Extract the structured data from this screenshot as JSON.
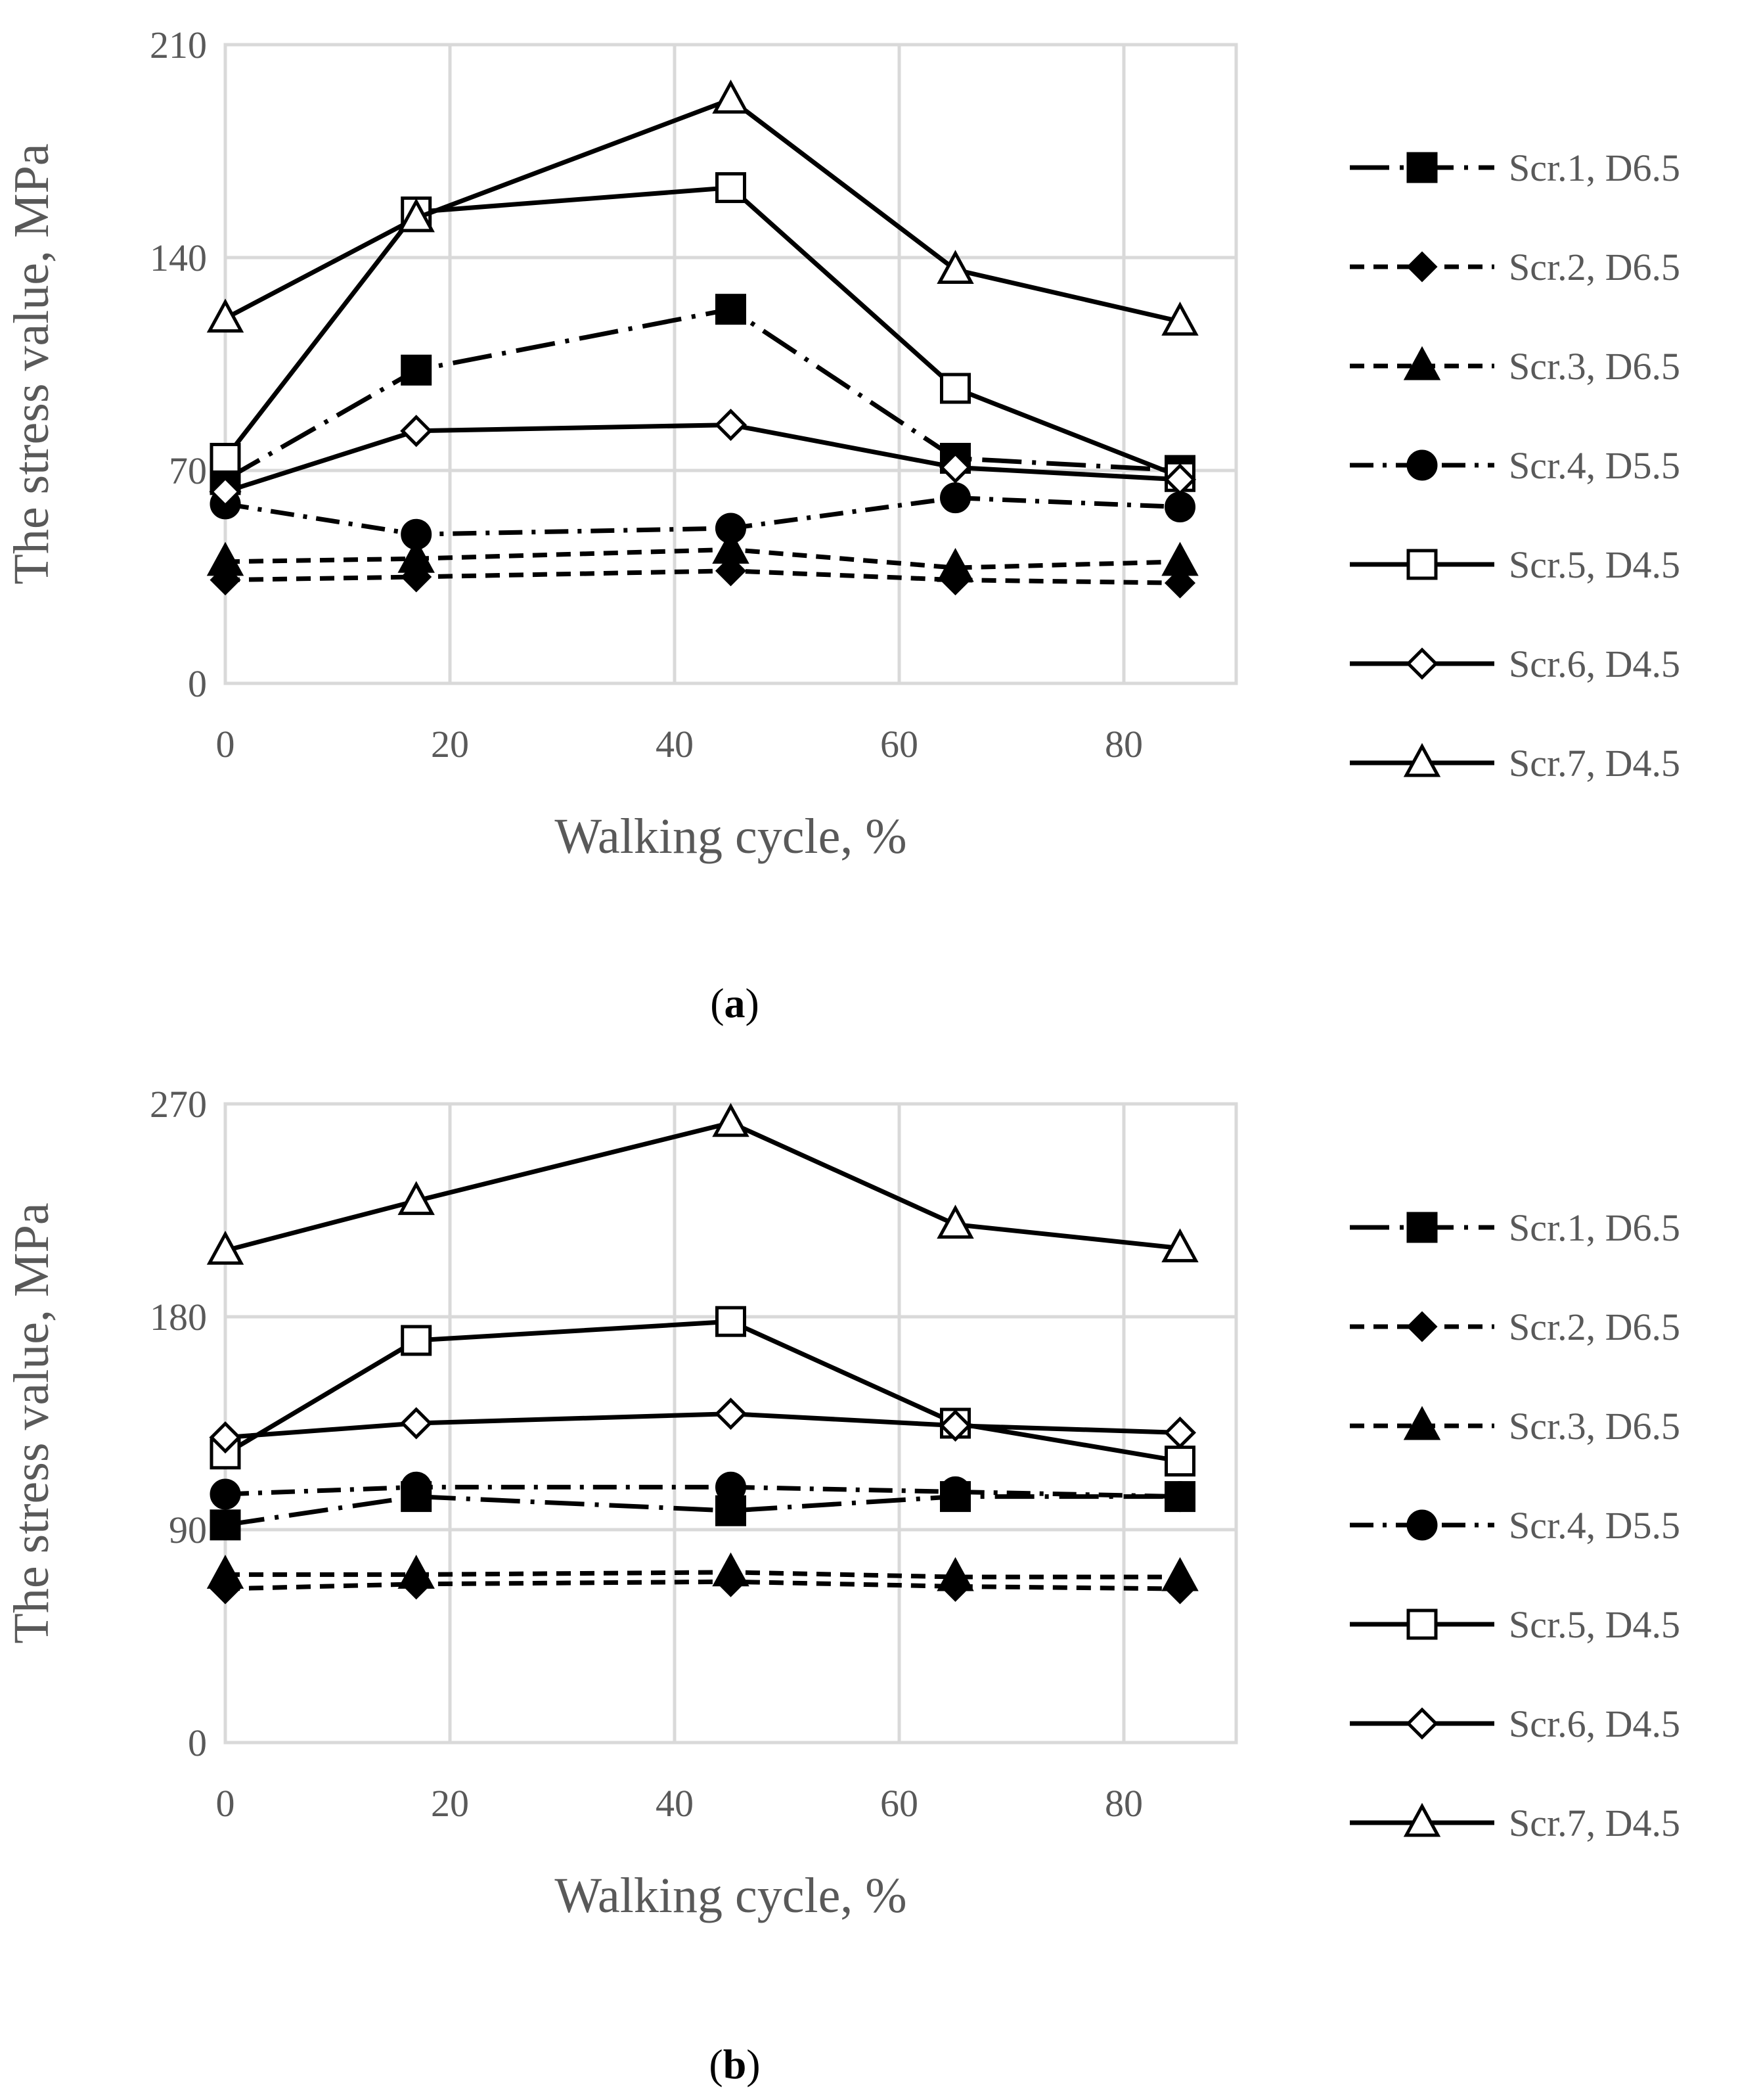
{
  "chart_data": [
    {
      "type": "line",
      "panel_label": "a",
      "caption": "(a)",
      "title": "",
      "xlabel": "Walking cycle, %",
      "ylabel": "The stress value, MPa",
      "xticks": [
        0,
        20,
        40,
        60,
        80
      ],
      "yticks": [
        0,
        70,
        140,
        210
      ],
      "xlim": [
        0,
        90
      ],
      "ylim": [
        0,
        210
      ],
      "x": [
        0,
        17,
        45,
        65,
        85
      ],
      "series": [
        {
          "name": "Scr.1, D6.5",
          "marker": "square-filled",
          "dash": "longdashdot",
          "values": [
            67,
            103,
            123,
            74,
            70
          ]
        },
        {
          "name": "Scr.2, D6.5",
          "marker": "diamond-filled",
          "dash": "dash",
          "values": [
            34,
            35,
            37,
            34,
            33
          ]
        },
        {
          "name": "Scr.3, D6.5",
          "marker": "triangle-filled",
          "dash": "dash",
          "values": [
            40,
            41,
            44,
            38,
            40
          ]
        },
        {
          "name": "Scr.4, D5.5",
          "marker": "circle-filled",
          "dash": "dashdot",
          "values": [
            59,
            49,
            51,
            61,
            58
          ]
        },
        {
          "name": "Scr.5, D4.5",
          "marker": "square-open",
          "dash": "solid",
          "values": [
            74,
            155,
            163,
            97,
            68
          ]
        },
        {
          "name": "Scr.6, D4.5",
          "marker": "diamond-open",
          "dash": "solid",
          "values": [
            63,
            83,
            85,
            71,
            67
          ]
        },
        {
          "name": "Scr.7, D4.5",
          "marker": "triangle-open",
          "dash": "solid",
          "values": [
            120,
            153,
            192,
            136,
            119
          ]
        }
      ]
    },
    {
      "type": "line",
      "panel_label": "b",
      "caption": "(b)",
      "title": "",
      "xlabel": "Walking cycle, %",
      "ylabel": "The stress value, MPa",
      "xticks": [
        0,
        20,
        40,
        60,
        80
      ],
      "yticks": [
        0,
        90,
        180,
        270
      ],
      "xlim": [
        0,
        90
      ],
      "ylim": [
        0,
        270
      ],
      "x": [
        0,
        17,
        45,
        65,
        85
      ],
      "series": [
        {
          "name": "Scr.1, D6.5",
          "marker": "square-filled",
          "dash": "longdashdot",
          "values": [
            92,
            104,
            98,
            104,
            104
          ]
        },
        {
          "name": "Scr.2, D6.5",
          "marker": "diamond-filled",
          "dash": "dash",
          "values": [
            65,
            67,
            68,
            66,
            65
          ]
        },
        {
          "name": "Scr.3, D6.5",
          "marker": "triangle-filled",
          "dash": "dash",
          "values": [
            71,
            71,
            72,
            70,
            70
          ]
        },
        {
          "name": "Scr.4, D5.5",
          "marker": "circle-filled",
          "dash": "dashdot",
          "values": [
            105,
            108,
            108,
            106,
            104
          ]
        },
        {
          "name": "Scr.5, D4.5",
          "marker": "square-open",
          "dash": "solid",
          "values": [
            122,
            170,
            178,
            135,
            119
          ]
        },
        {
          "name": "Scr.6, D4.5",
          "marker": "diamond-open",
          "dash": "solid",
          "values": [
            129,
            135,
            139,
            134,
            131
          ]
        },
        {
          "name": "Scr.7, D4.5",
          "marker": "triangle-open",
          "dash": "solid",
          "values": [
            208,
            229,
            262,
            219,
            209
          ]
        }
      ]
    }
  ]
}
